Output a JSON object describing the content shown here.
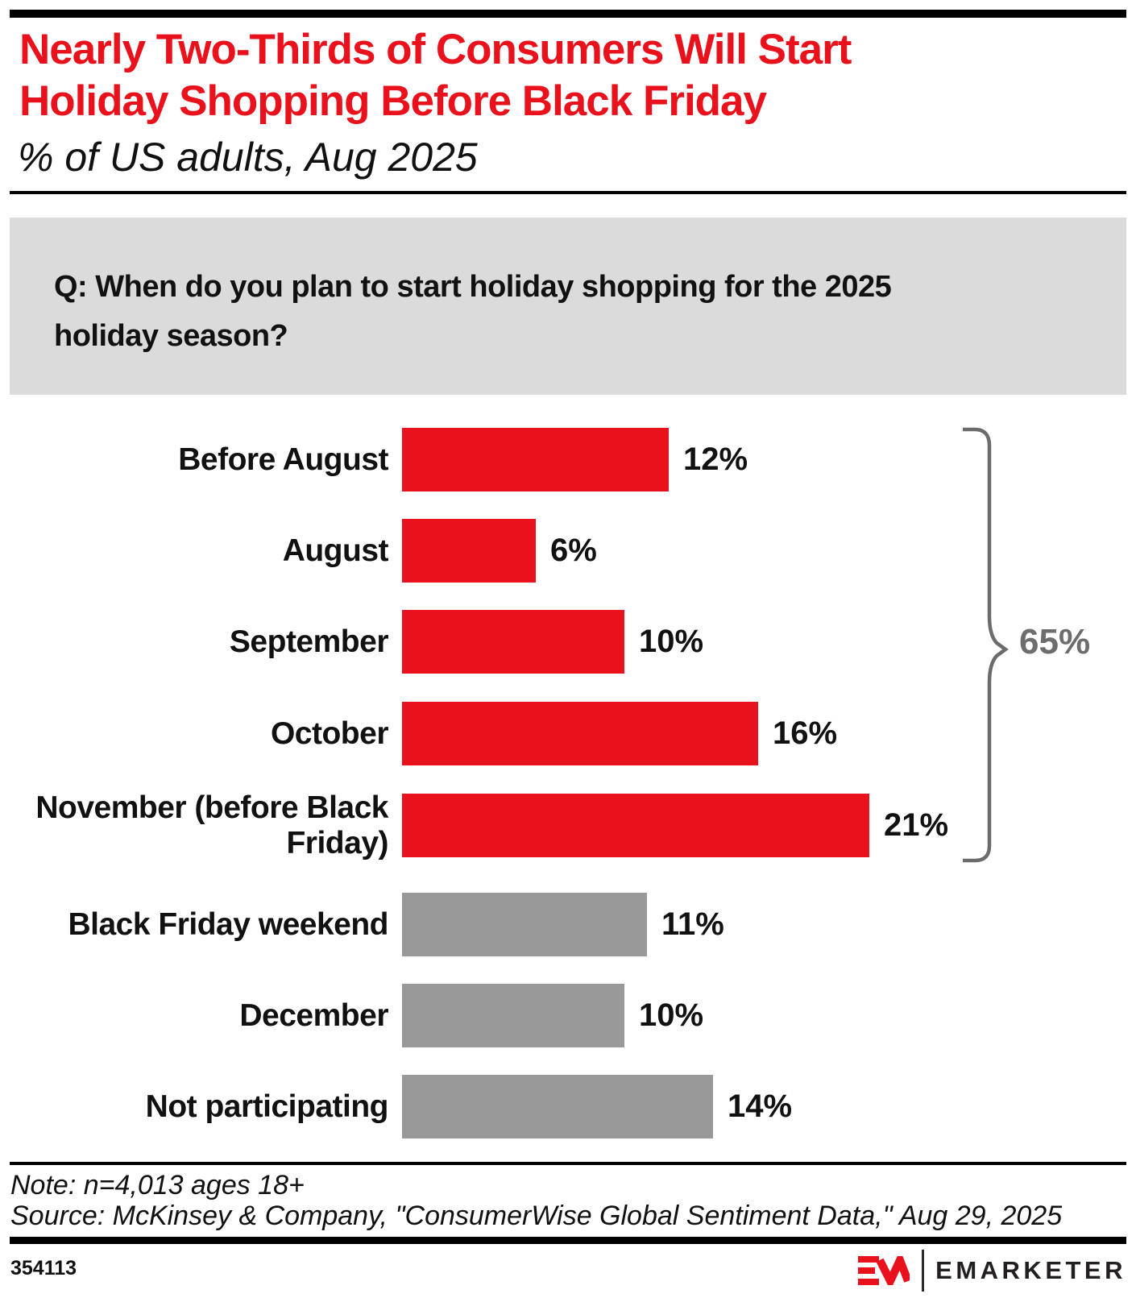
{
  "header": {
    "title_lines": [
      "Nearly Two-Thirds of Consumers Will Start",
      "Holiday Shopping Before Black Friday"
    ],
    "subtitle": "% of US adults, Aug 2025",
    "title_color": "#e8111c"
  },
  "question": {
    "text": "Q: When do you plan to start holiday shopping for the 2025 holiday season?",
    "lines": [
      "Q: When do you plan to start holiday shopping for the 2025",
      "holiday season?"
    ],
    "box_color": "#dbdbdb"
  },
  "chart_data": {
    "type": "bar",
    "orientation": "horizontal",
    "categories": [
      "Before August",
      "August",
      "September",
      "October",
      "November (before Black Friday)",
      "Black Friday weekend",
      "December",
      "Not participating"
    ],
    "values": [
      12,
      6,
      10,
      16,
      21,
      11,
      10,
      14
    ],
    "value_labels": [
      "12%",
      "6%",
      "10%",
      "16%",
      "21%",
      "11%",
      "10%",
      "14%"
    ],
    "unit": "%",
    "bar_groups": [
      "highlight",
      "highlight",
      "highlight",
      "highlight",
      "highlight",
      "neutral",
      "neutral",
      "neutral"
    ],
    "colors": {
      "highlight": "#e8111c",
      "neutral": "#999999"
    },
    "grid": false,
    "value_labels_position": "right-of-bar",
    "annotation": {
      "text": "65%",
      "spans_categories": [
        "Before August",
        "August",
        "September",
        "October",
        "November (before Black Friday)"
      ],
      "color": "#6d6d6d",
      "shape": "right-curly-brace"
    }
  },
  "footer": {
    "note": "Note: n=4,013 ages 18+",
    "source": "Source: McKinsey & Company, \"ConsumerWise Global Sentiment Data,\" Aug 29, 2025",
    "chart_id": "354113",
    "brand": "EMARKETER"
  }
}
